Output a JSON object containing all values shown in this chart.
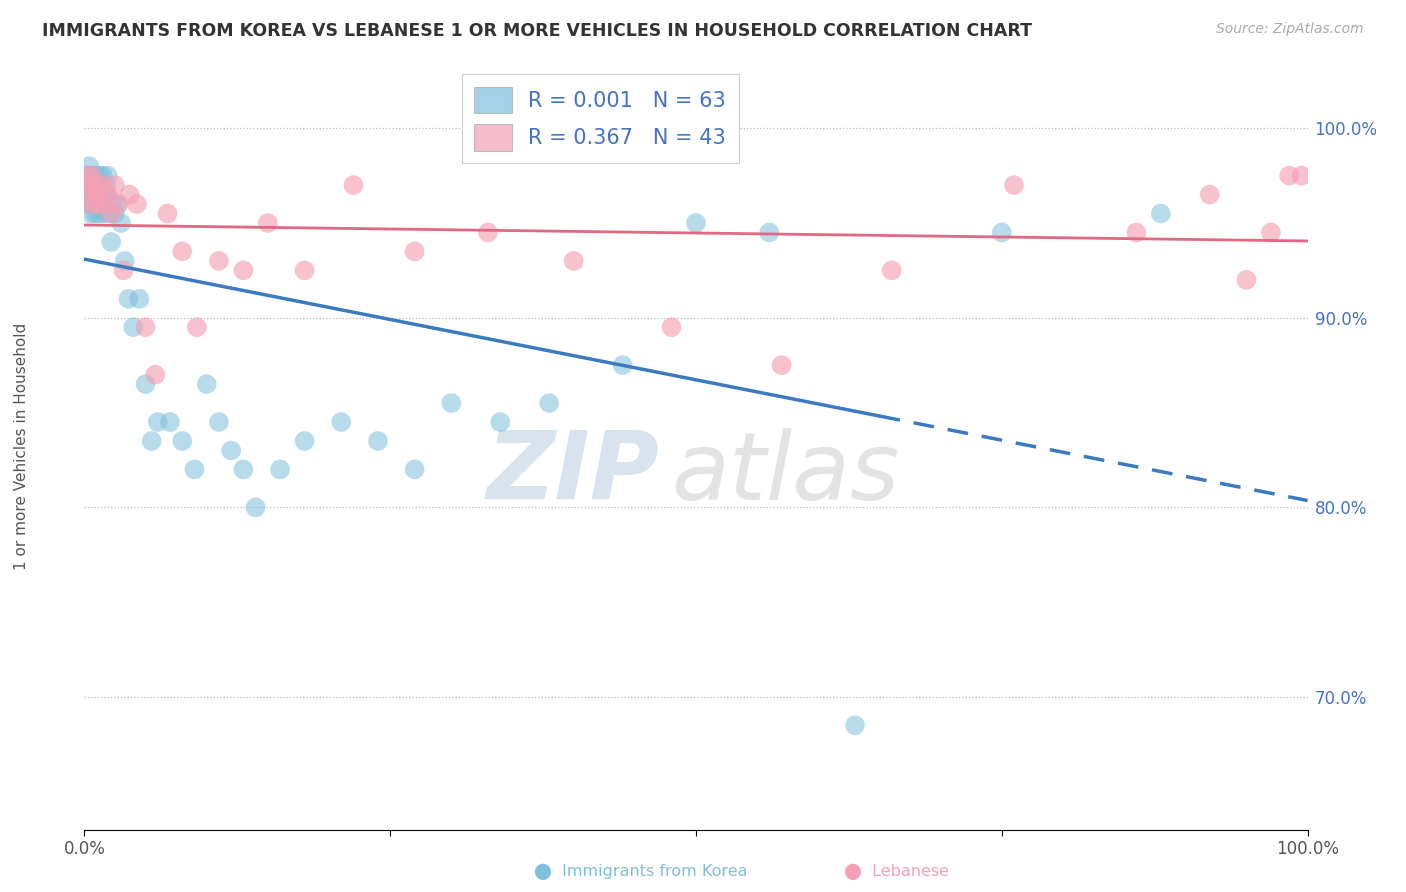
{
  "title": "IMMIGRANTS FROM KOREA VS LEBANESE 1 OR MORE VEHICLES IN HOUSEHOLD CORRELATION CHART",
  "source": "Source: ZipAtlas.com",
  "ylabel": "1 or more Vehicles in Household",
  "xlim": [
    0.0,
    1.0
  ],
  "ylim": [
    0.63,
    1.03
  ],
  "yticks": [
    0.7,
    0.8,
    0.9,
    1.0
  ],
  "ytick_labels": [
    "70.0%",
    "80.0%",
    "90.0%",
    "100.0%"
  ],
  "xticks": [
    0.0,
    0.25,
    0.5,
    0.75,
    1.0
  ],
  "xtick_labels": [
    "0.0%",
    "",
    "",
    "",
    "100.0%"
  ],
  "legend_r_korea": "R = 0.001",
  "legend_n_korea": "N = 63",
  "legend_r_lebanese": "R = 0.367",
  "legend_n_lebanese": "N = 43",
  "korea_color": "#7fbfdd",
  "lebanese_color": "#f4a0b5",
  "korea_line_color": "#3a7abf",
  "lebanese_line_color": "#e06880",
  "watermark_zip": "ZIP",
  "watermark_atlas": "atlas",
  "korea_x": [
    0.002,
    0.003,
    0.003,
    0.004,
    0.004,
    0.005,
    0.005,
    0.006,
    0.006,
    0.007,
    0.007,
    0.008,
    0.008,
    0.009,
    0.009,
    0.01,
    0.01,
    0.011,
    0.012,
    0.012,
    0.013,
    0.014,
    0.015,
    0.015,
    0.016,
    0.017,
    0.018,
    0.019,
    0.02,
    0.022,
    0.023,
    0.025,
    0.027,
    0.03,
    0.033,
    0.036,
    0.04,
    0.045,
    0.05,
    0.055,
    0.06,
    0.07,
    0.08,
    0.09,
    0.1,
    0.11,
    0.12,
    0.13,
    0.14,
    0.16,
    0.18,
    0.21,
    0.24,
    0.27,
    0.3,
    0.34,
    0.38,
    0.44,
    0.5,
    0.56,
    0.63,
    0.75,
    0.88
  ],
  "korea_y": [
    0.975,
    0.97,
    0.965,
    0.98,
    0.96,
    0.975,
    0.955,
    0.965,
    0.97,
    0.96,
    0.975,
    0.97,
    0.96,
    0.975,
    0.955,
    0.97,
    0.96,
    0.965,
    0.975,
    0.955,
    0.97,
    0.965,
    0.975,
    0.96,
    0.955,
    0.965,
    0.97,
    0.975,
    0.955,
    0.94,
    0.96,
    0.955,
    0.96,
    0.95,
    0.93,
    0.91,
    0.895,
    0.91,
    0.865,
    0.835,
    0.845,
    0.845,
    0.835,
    0.82,
    0.865,
    0.845,
    0.83,
    0.82,
    0.8,
    0.82,
    0.835,
    0.845,
    0.835,
    0.82,
    0.855,
    0.845,
    0.855,
    0.875,
    0.95,
    0.945,
    0.685,
    0.945,
    0.955
  ],
  "lebanese_x": [
    0.003,
    0.004,
    0.005,
    0.006,
    0.007,
    0.008,
    0.009,
    0.01,
    0.011,
    0.012,
    0.013,
    0.015,
    0.017,
    0.019,
    0.022,
    0.025,
    0.028,
    0.032,
    0.037,
    0.043,
    0.05,
    0.058,
    0.068,
    0.08,
    0.092,
    0.11,
    0.13,
    0.15,
    0.18,
    0.22,
    0.27,
    0.33,
    0.4,
    0.48,
    0.57,
    0.66,
    0.76,
    0.86,
    0.92,
    0.95,
    0.97,
    0.985,
    0.995
  ],
  "lebanese_y": [
    0.975,
    0.97,
    0.96,
    0.975,
    0.965,
    0.97,
    0.96,
    0.965,
    0.97,
    0.96,
    0.965,
    0.97,
    0.96,
    0.965,
    0.955,
    0.97,
    0.96,
    0.925,
    0.965,
    0.96,
    0.895,
    0.87,
    0.955,
    0.935,
    0.895,
    0.93,
    0.925,
    0.95,
    0.925,
    0.97,
    0.935,
    0.945,
    0.93,
    0.895,
    0.875,
    0.925,
    0.97,
    0.945,
    0.965,
    0.92,
    0.945,
    0.975,
    0.975
  ]
}
